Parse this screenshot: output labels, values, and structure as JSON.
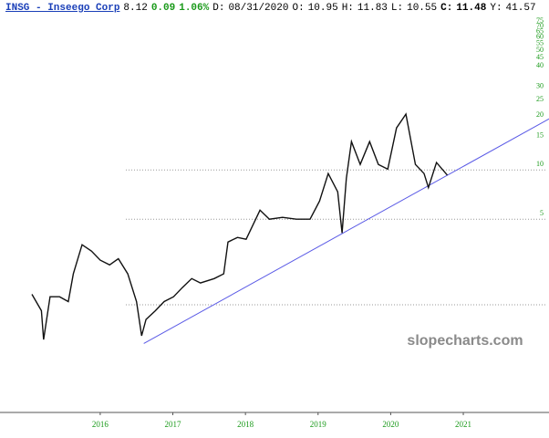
{
  "chart_data": {
    "type": "line",
    "header": [
      "INSG - Inseego Corp",
      "8.12",
      "0.09",
      "1.06%",
      "D:",
      "08/31/2020",
      "O:",
      "10.95",
      "H:",
      "11.83",
      "L:",
      "10.55",
      "C:",
      "11.48",
      "Y:",
      "41.57"
    ],
    "watermark": "slopecharts.com",
    "log_scale": true,
    "xlim": [
      2014.62,
      2022.18
    ],
    "xticks": [
      {
        "value": 2016,
        "label": "2016"
      },
      {
        "value": 2017,
        "label": "2017"
      },
      {
        "value": 2018,
        "label": "2018"
      },
      {
        "value": 2019,
        "label": "2019"
      },
      {
        "value": 2020,
        "label": "2020"
      },
      {
        "value": 2021,
        "label": "2021"
      }
    ],
    "ylim": [
      0.33,
      96
    ],
    "yticks": [
      5,
      10,
      15,
      20,
      25,
      30,
      40,
      45,
      50,
      55,
      60,
      65,
      70,
      75
    ],
    "dotted_lines": [
      10,
      5,
      1.5
    ],
    "x": [
      2015.06,
      2015.19,
      2015.22,
      2015.31,
      2015.44,
      2015.56,
      2015.63,
      2015.75,
      2015.88,
      2016.0,
      2016.13,
      2016.25,
      2016.38,
      2016.5,
      2016.57,
      2016.63,
      2016.76,
      2016.88,
      2017.01,
      2017.13,
      2017.26,
      2017.38,
      2017.57,
      2017.7,
      2017.76,
      2017.89,
      2018.01,
      2018.2,
      2018.33,
      2018.51,
      2018.7,
      2018.89,
      2019.02,
      2019.14,
      2019.27,
      2019.33,
      2019.39,
      2019.46,
      2019.58,
      2019.71,
      2019.83,
      2019.96,
      2020.08,
      2020.21,
      2020.34,
      2020.46,
      2020.52,
      2020.63,
      2020.78
    ],
    "series": [
      {
        "color": "#111111",
        "values": [
          1.74,
          1.38,
          0.92,
          1.68,
          1.68,
          1.57,
          2.32,
          3.49,
          3.19,
          2.81,
          2.63,
          2.87,
          2.32,
          1.57,
          0.97,
          1.22,
          1.38,
          1.57,
          1.68,
          1.91,
          2.17,
          2.04,
          2.17,
          2.32,
          3.63,
          3.87,
          3.77,
          5.68,
          5.0,
          5.13,
          5.0,
          5.0,
          6.46,
          9.5,
          7.35,
          4.12,
          8.9,
          14.9,
          10.8,
          14.9,
          10.8,
          10.1,
          18.05,
          21.9,
          10.8,
          9.5,
          7.8,
          11.1,
          9.3
        ]
      }
    ],
    "trendline": {
      "x": [
        2016.6,
        2022.18
      ],
      "values": [
        0.87,
        20.5
      ],
      "color": "#5a5ae6"
    },
    "tick_color": "#1a9a1a"
  }
}
